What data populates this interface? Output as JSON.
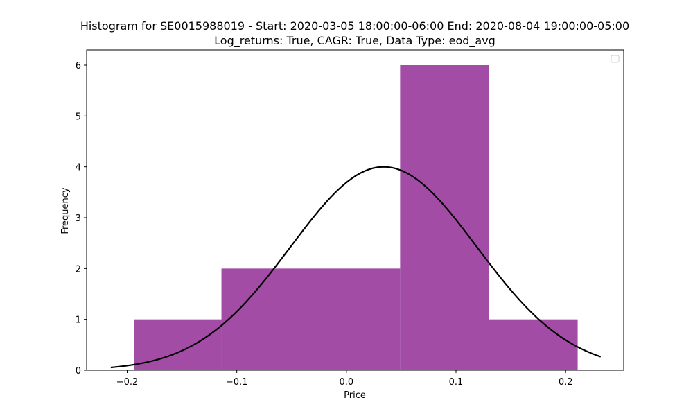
{
  "chart_data": {
    "type": "bar",
    "title_line1": "Histogram for SE0015988019 - Start: 2020-03-05 18:00:00-06:00 End: 2020-08-04 19:00:00-05:00",
    "title_line2": "Log_returns: True, CAGR: True, Data Type: eod_avg",
    "xlabel": "Price",
    "ylabel": "Frequency",
    "xlim": [
      -0.237,
      0.253
    ],
    "ylim": [
      0,
      6.3
    ],
    "x_ticks": [
      -0.2,
      -0.1,
      0.0,
      0.1,
      0.2
    ],
    "x_tick_labels": [
      "−0.2",
      "−0.1",
      "0.0",
      "0.1",
      "0.2"
    ],
    "y_ticks": [
      0,
      1,
      2,
      3,
      4,
      5,
      6
    ],
    "y_tick_labels": [
      "0",
      "1",
      "2",
      "3",
      "4",
      "5",
      "6"
    ],
    "bins": [
      {
        "x0": -0.194,
        "x1": -0.114,
        "count": 1
      },
      {
        "x0": -0.114,
        "x1": -0.033,
        "count": 2
      },
      {
        "x0": -0.033,
        "x1": 0.049,
        "count": 2
      },
      {
        "x0": 0.049,
        "x1": 0.13,
        "count": 6
      },
      {
        "x0": 0.13,
        "x1": 0.211,
        "count": 1
      }
    ],
    "fit_curve": {
      "mean": 0.034,
      "std": 0.085,
      "peak": 4.0,
      "x_range": [
        -0.215,
        0.232
      ]
    },
    "bar_color": "#a24ca6",
    "curve_color": "#000000",
    "grid": false,
    "legend": "top-right (empty)"
  }
}
